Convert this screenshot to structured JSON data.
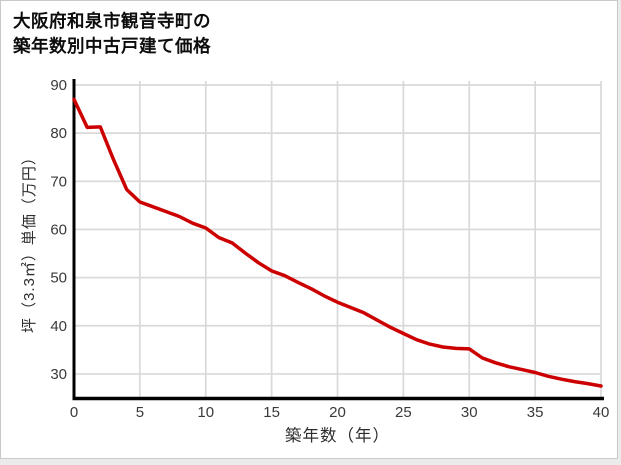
{
  "page": {
    "background": "#ebebeb",
    "card_background": "#ffffff",
    "card_border": "#c9c9c9"
  },
  "title": {
    "line1": "大阪府和泉市観音寺町の",
    "line2": "築年数別中古戸建て価格"
  },
  "chart_data": {
    "type": "line",
    "title": "大阪府和泉市観音寺町の築年数別中古戸建て価格",
    "xlabel": "築年数（年）",
    "ylabel": "坪（3.3㎡）単価（万円）",
    "x": [
      0,
      1,
      2,
      3,
      4,
      5,
      6,
      7,
      8,
      9,
      10,
      11,
      12,
      13,
      14,
      15,
      16,
      17,
      18,
      19,
      20,
      21,
      22,
      23,
      24,
      25,
      26,
      27,
      28,
      29,
      30,
      31,
      32,
      33,
      34,
      35,
      36,
      37,
      38,
      39,
      40
    ],
    "values": [
      87,
      81.2,
      81.3,
      74.5,
      68.3,
      65.7,
      64.7,
      63.7,
      62.7,
      61.3,
      60.3,
      58.3,
      57.2,
      55.1,
      53.1,
      51.4,
      50.4,
      49,
      47.7,
      46.2,
      44.9,
      43.8,
      42.7,
      41.2,
      39.7,
      38.4,
      37.1,
      36.2,
      35.6,
      35.3,
      35.2,
      33.3,
      32.3,
      31.5,
      30.9,
      30.3,
      29.5,
      28.9,
      28.4,
      28,
      27.5
    ],
    "xlim": [
      0,
      40
    ],
    "ylim": [
      25,
      90
    ],
    "xticks": [
      0,
      5,
      10,
      15,
      20,
      25,
      30,
      35,
      40
    ],
    "yticks": [
      30,
      40,
      50,
      60,
      70,
      80,
      90
    ],
    "grid": true,
    "legend": false,
    "line_color": "#cc0000",
    "grid_color": "#d9d9d9",
    "axis_color": "#000000",
    "tick_label_color": "#3a3a3a"
  }
}
